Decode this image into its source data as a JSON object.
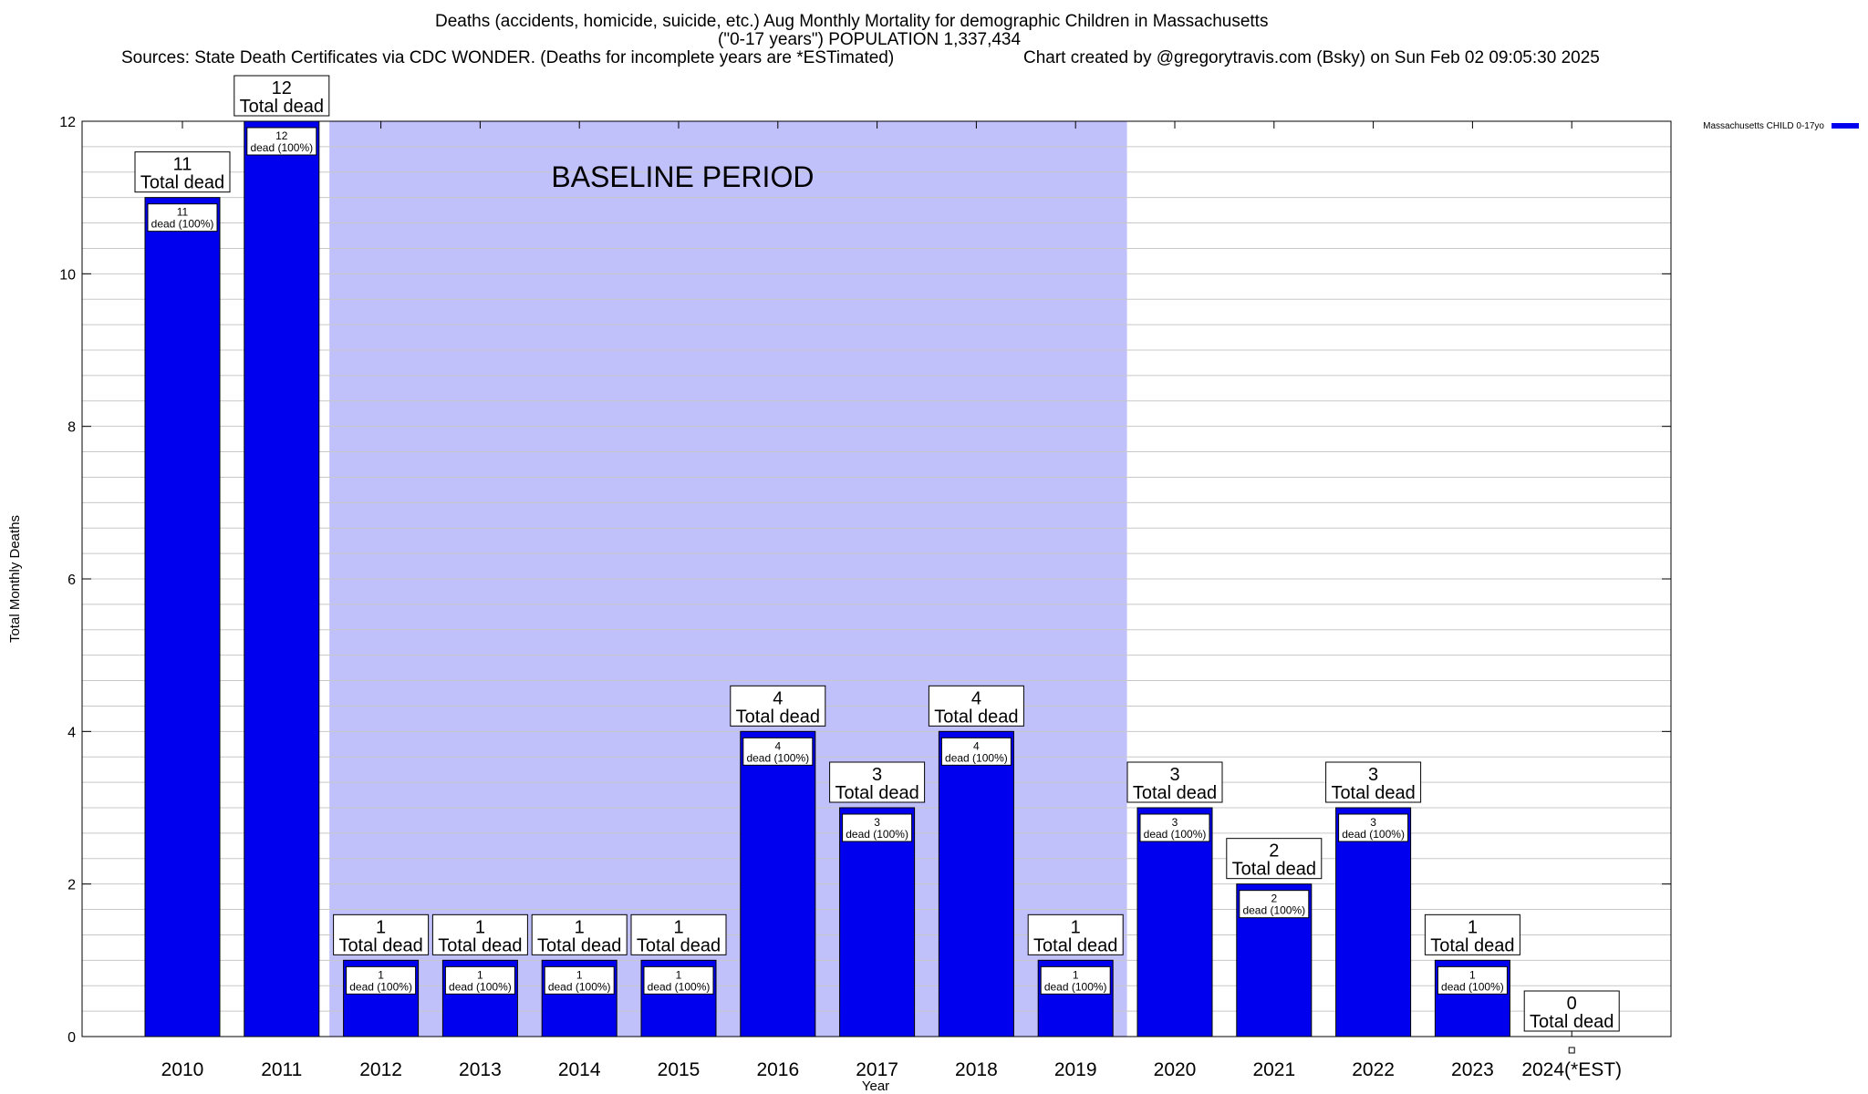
{
  "header": {
    "title_line1": "Deaths (accidents, homicide, suicide, etc.) Aug Monthly Mortality for demographic Children in Massachusetts",
    "title_line2": "(\"0-17 years\") POPULATION 1,337,434",
    "sources": "Sources: State Death Certificates via CDC WONDER. (Deaths for incomplete years are *ESTimated)",
    "credit": "Chart created by @gregorytravis.com (Bsky) on Sun Feb 02 09:05:30 2025"
  },
  "chart_data": {
    "type": "bar",
    "title": "Deaths (accidents, homicide, suicide, etc.) Aug Monthly Mortality for demographic Children in Massachusetts",
    "xlabel": "Year",
    "ylabel": "Total Monthly Deaths",
    "ylim": [
      0,
      12
    ],
    "yticks": [
      0,
      2,
      4,
      6,
      8,
      10,
      12
    ],
    "grid": true,
    "legend_position": "top-right",
    "categories": [
      "2010",
      "2011",
      "2012",
      "2013",
      "2014",
      "2015",
      "2016",
      "2017",
      "2018",
      "2019",
      "2020",
      "2021",
      "2022",
      "2023",
      "2024(*EST)"
    ],
    "series": [
      {
        "name": "Massachusetts CHILD 0-17yo",
        "values": [
          11,
          12,
          1,
          1,
          1,
          1,
          4,
          3,
          4,
          1,
          3,
          2,
          3,
          1,
          0
        ],
        "color": "#0000ee"
      }
    ],
    "total_label_suffix": "Total dead",
    "inner_label_suffix": "dead (100%)",
    "baseline": {
      "label": "BASELINE PERIOD",
      "start": "2012",
      "end": "2019",
      "color": "#c0c0fb"
    }
  },
  "colors": {
    "bar": "#0000ee",
    "baseline_shade": "#c0c0fb",
    "grid": "#c8c8c8",
    "axis": "#000000"
  }
}
